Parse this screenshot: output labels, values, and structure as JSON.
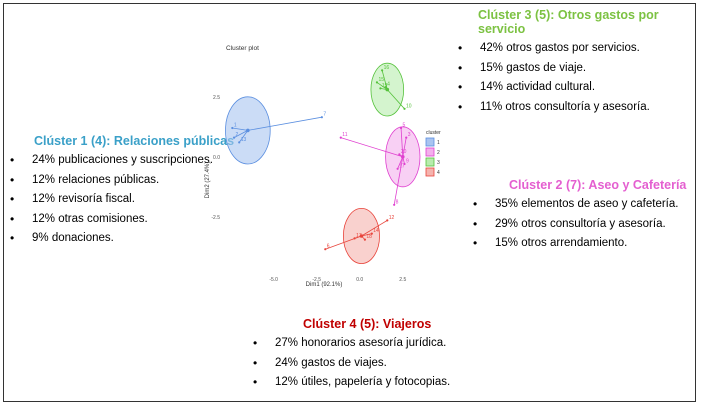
{
  "clusters_text": {
    "c1": {
      "title": "Clúster 1 (4): Relaciones públicas",
      "color": "#3aa0c8",
      "items": [
        "24% publicaciones y suscripciones.",
        "12% relaciones públicas.",
        "12% revisoría fiscal.",
        "12% otras comisiones.",
        "9% donaciones."
      ]
    },
    "c2": {
      "title": "Clúster 2 (7): Aseo y Cafetería",
      "color": "#e45fd0",
      "items": [
        "35% elementos de aseo y cafetería.",
        "29% otros consultoría y asesoría.",
        "15% otros arrendamiento."
      ]
    },
    "c3": {
      "title": "Clúster 3 (5): Otros gastos por servicio",
      "color": "#7cc242",
      "items": [
        "42% otros gastos por servicios.",
        "15% gastos de viaje.",
        "14% actividad cultural.",
        "11% otros consultoría y asesoría."
      ]
    },
    "c4": {
      "title": "Clúster 4 (5): Viajeros",
      "color": "#c00000",
      "items": [
        "27% honorarios asesoría jurídica.",
        "24% gastos de viajes.",
        "12% útiles, papelería y fotocopias."
      ]
    }
  },
  "chart_data": {
    "type": "scatter",
    "title": "Cluster plot",
    "xlabel": "Dim1 (92.1%)",
    "ylabel": "Dim2 (27.4%)",
    "xlim": [
      -8,
      3.5
    ],
    "ylim": [
      -4.8,
      4.2
    ],
    "xticks": [
      "-5.0",
      "-2.5",
      "0.0",
      "2.5"
    ],
    "xtick_values": [
      -5.0,
      -2.5,
      0.0,
      2.5
    ],
    "yticks": [
      "2.5",
      "0.0",
      "-2.5"
    ],
    "ytick_values": [
      2.5,
      0.0,
      -2.5
    ],
    "legend_title": "cluster",
    "legend_position": "right",
    "legend": [
      "1",
      "2",
      "3",
      "4"
    ],
    "series": [
      {
        "name": "1",
        "color": "#5b8fe0",
        "fill": "#a9c4f0",
        "center": [
          -6.5,
          1.1
        ],
        "ellipse": {
          "rx": 1.3,
          "ry": 1.4
        },
        "points": [
          {
            "label": "1",
            "x": -7.4,
            "y": 1.2
          },
          {
            "label": "2",
            "x": -7.3,
            "y": 0.8
          },
          {
            "label": "13",
            "x": -7.0,
            "y": 0.6
          },
          {
            "label": "7",
            "x": -2.2,
            "y": 1.65
          }
        ]
      },
      {
        "name": "2",
        "color": "#e040d0",
        "fill": "#f3b0ec",
        "center": [
          2.5,
          0.0
        ],
        "ellipse": {
          "rx": 1.0,
          "ry": 1.25
        },
        "points": [
          {
            "label": "11",
            "x": -1.1,
            "y": 0.8
          },
          {
            "label": "5",
            "x": 2.4,
            "y": 1.2
          },
          {
            "label": "3",
            "x": 2.7,
            "y": 0.8
          },
          {
            "label": "20",
            "x": 2.3,
            "y": 0.1
          },
          {
            "label": "9",
            "x": 2.6,
            "y": -0.3
          },
          {
            "label": "17",
            "x": 2.2,
            "y": -0.5
          },
          {
            "label": "8",
            "x": 2.0,
            "y": -2.0
          }
        ]
      },
      {
        "name": "3",
        "color": "#56c23c",
        "fill": "#b8ecad",
        "center": [
          1.6,
          2.8
        ],
        "ellipse": {
          "rx": 0.95,
          "ry": 1.1
        },
        "points": [
          {
            "label": "16",
            "x": 1.3,
            "y": 3.6
          },
          {
            "label": "15",
            "x": 1.0,
            "y": 3.1
          },
          {
            "label": "19",
            "x": 1.2,
            "y": 2.85
          },
          {
            "label": "4",
            "x": 1.5,
            "y": 2.9
          },
          {
            "label": "10",
            "x": 2.6,
            "y": 2.0
          }
        ]
      },
      {
        "name": "4",
        "color": "#e8453c",
        "fill": "#f5b3ae",
        "center": [
          0.1,
          -3.3
        ],
        "ellipse": {
          "rx": 1.05,
          "ry": 1.15
        },
        "points": [
          {
            "label": "12",
            "x": 1.6,
            "y": -2.65
          },
          {
            "label": "14",
            "x": 0.7,
            "y": -3.2
          },
          {
            "label": "17",
            "x": -0.3,
            "y": -3.4
          },
          {
            "label": "18",
            "x": 0.3,
            "y": -3.45
          },
          {
            "label": "6",
            "x": -2.0,
            "y": -3.85
          }
        ]
      }
    ]
  }
}
